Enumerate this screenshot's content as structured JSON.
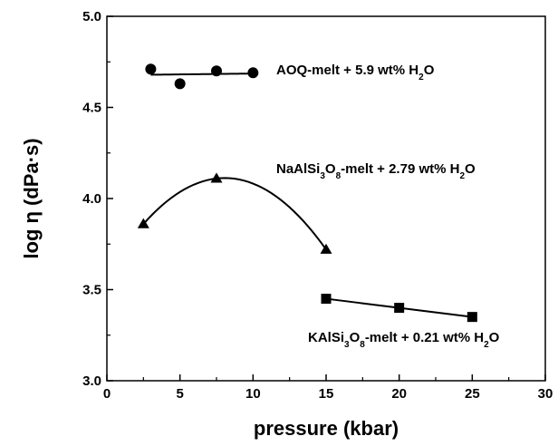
{
  "chart_data": {
    "type": "scatter",
    "xlabel": "pressure (kbar)",
    "ylabel": "log η (dPa·s)",
    "xlim": [
      0,
      30
    ],
    "ylim": [
      3.0,
      5.0
    ],
    "x_ticks": [
      "0",
      "5",
      "10",
      "15",
      "20",
      "25",
      "30"
    ],
    "y_ticks": [
      "3.0",
      "3.5",
      "4.0",
      "4.5",
      "5.0"
    ],
    "grid": false,
    "series": [
      {
        "name": "AOQ-melt + 5.9 wt% H2O",
        "label_parts": [
          "AOQ-melt + 5.9 wt% H",
          "2",
          "O"
        ],
        "marker": "circle",
        "fit": "linear",
        "fit_x": [
          3,
          10
        ],
        "x": [
          3,
          5,
          7.5,
          10
        ],
        "y": [
          4.71,
          4.63,
          4.7,
          4.69
        ]
      },
      {
        "name": "NaAlSi3O8-melt + 2.79 wt% H2O",
        "label_parts": [
          "NaAlSi",
          "3",
          "O",
          "8",
          "-melt + 2.79 wt% H",
          "2",
          "O"
        ],
        "marker": "triangle",
        "fit": "quadratic",
        "fit_x": [
          2.5,
          15
        ],
        "x": [
          2.5,
          7.5,
          15
        ],
        "y": [
          3.86,
          4.11,
          3.72
        ]
      },
      {
        "name": "KAlSi3O8-melt + 0.21 wt% H2O",
        "label_parts": [
          "KAlSi",
          "3",
          "O",
          "8",
          "-melt + 0.21 wt% H",
          "2",
          "O"
        ],
        "marker": "square",
        "fit": "linear",
        "fit_x": [
          15,
          25
        ],
        "x": [
          15,
          20,
          25
        ],
        "y": [
          3.45,
          3.4,
          3.35
        ]
      }
    ]
  }
}
